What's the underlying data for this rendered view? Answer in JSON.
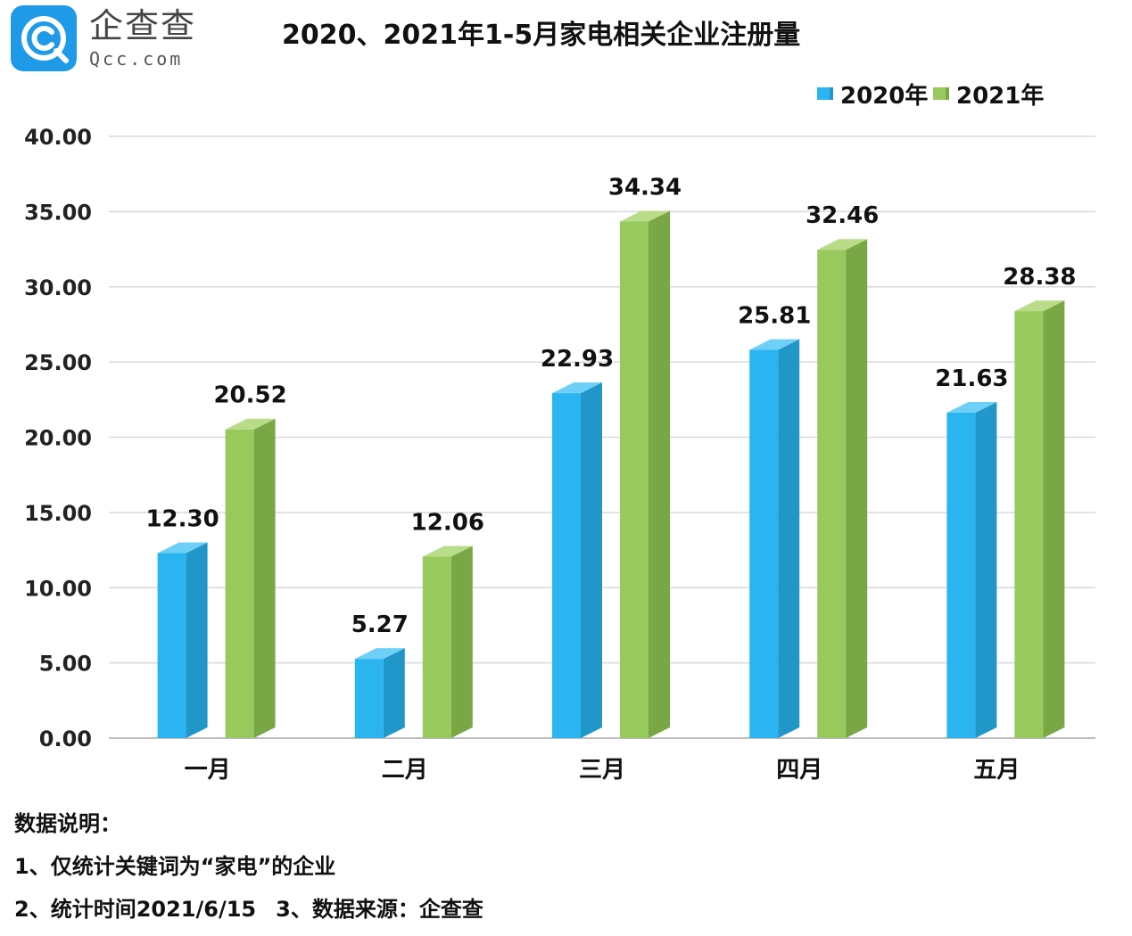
{
  "brand": {
    "name_cn": "企查查",
    "name_en": "Qcc.com"
  },
  "chart_data": {
    "type": "bar",
    "title": "2020、2021年1-5月家电相关企业注册量",
    "categories": [
      "一月",
      "二月",
      "三月",
      "四月",
      "五月"
    ],
    "series": [
      {
        "name": "2020年",
        "values": [
          12.3,
          5.27,
          22.93,
          25.81,
          21.63
        ],
        "color": "#2bb5f0",
        "side_color": "#2196c8",
        "top_color": "#6fd0f7"
      },
      {
        "name": "2021年",
        "values": [
          20.52,
          12.06,
          34.34,
          32.46,
          28.38
        ],
        "color": "#97c95c",
        "side_color": "#7aa746",
        "top_color": "#b8dc88"
      }
    ],
    "data_labels": [
      [
        "12.30",
        "5.27",
        "22.93",
        "25.81",
        "21.63"
      ],
      [
        "20.52",
        "12.06",
        "34.34",
        "32.46",
        "28.38"
      ]
    ],
    "y_ticks": [
      "0.00",
      "5.00",
      "10.00",
      "15.00",
      "20.00",
      "25.00",
      "30.00",
      "35.00",
      "40.00"
    ],
    "ylim": [
      0,
      40
    ],
    "grid": true,
    "legend": "top-right"
  },
  "notes": {
    "heading": "数据说明：",
    "line1": "1、仅统计关键词为“家电”的企业",
    "line2a": "2、统计时间2021/6/15",
    "line2b": "3、数据来源：企查查"
  }
}
